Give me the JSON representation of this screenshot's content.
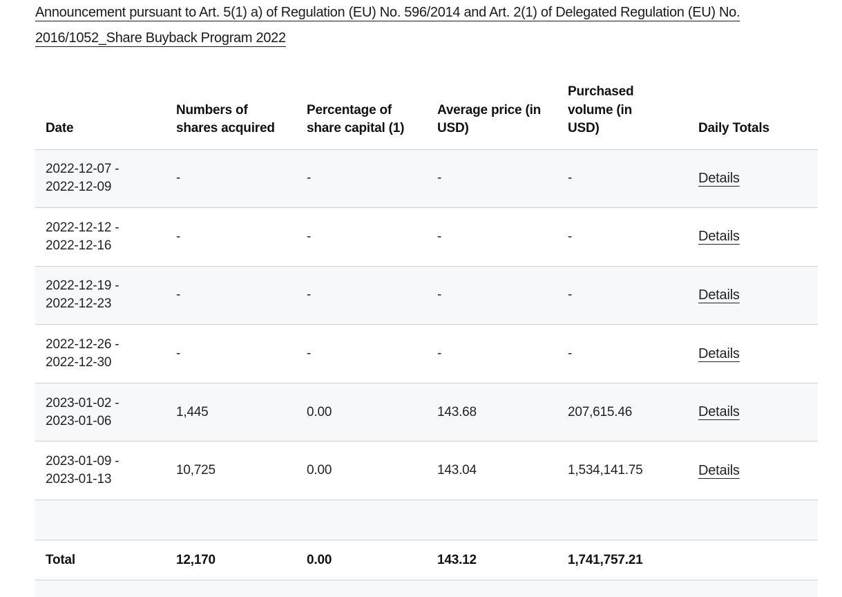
{
  "announcement": {
    "text": "Announcement pursuant to Art. 5(1) a) of Regulation (EU) No. 596/2014 and Art. 2(1) of Delegated Regulation (EU) No. 2016/1052_Share Buyback Program 2022"
  },
  "table": {
    "headers": {
      "date": "Date",
      "shares": "Numbers of shares acquired",
      "percentage": "Percentage of share capital (1)",
      "average_price": "Average price (in USD)",
      "volume": "Purchased volume (in USD)",
      "daily_totals": "Daily Totals"
    },
    "rows": [
      {
        "date_start": "2022-12-07 -",
        "date_end": "2022-12-09",
        "shares": "-",
        "percentage": "-",
        "average_price": "-",
        "volume": "-",
        "details": "Details"
      },
      {
        "date_start": "2022-12-12 -",
        "date_end": "2022-12-16",
        "shares": "-",
        "percentage": "-",
        "average_price": "-",
        "volume": "-",
        "details": "Details"
      },
      {
        "date_start": "2022-12-19 -",
        "date_end": "2022-12-23",
        "shares": "-",
        "percentage": "-",
        "average_price": "-",
        "volume": "-",
        "details": "Details"
      },
      {
        "date_start": "2022-12-26 -",
        "date_end": "2022-12-30",
        "shares": "-",
        "percentage": "-",
        "average_price": "-",
        "volume": "-",
        "details": "Details"
      },
      {
        "date_start": "2023-01-02 -",
        "date_end": "2023-01-06",
        "shares": "1,445",
        "percentage": "0.00",
        "average_price": "143.68",
        "volume": "207,615.46",
        "details": "Details"
      },
      {
        "date_start": "2023-01-09 -",
        "date_end": "2023-01-13",
        "shares": "10,725",
        "percentage": "0.00",
        "average_price": "143.04",
        "volume": "1,534,141.75",
        "details": "Details"
      }
    ],
    "total": {
      "label": "Total",
      "shares": "12,170",
      "percentage": "0.00",
      "average_price": "143.12",
      "volume": "1,741,757.21"
    }
  }
}
